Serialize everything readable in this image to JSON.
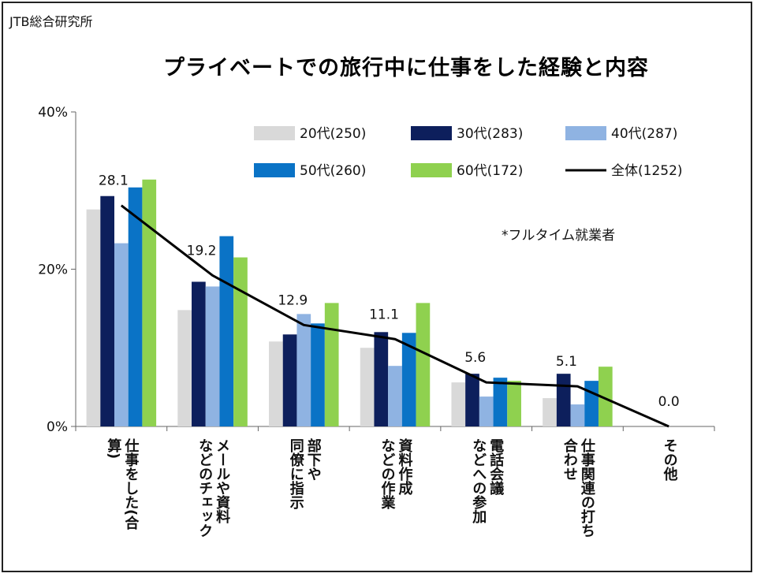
{
  "source": "JTB総合研究所",
  "note": "*フルタイム就業者",
  "chart_data": {
    "type": "bar",
    "title": "プライベートでの旅行中に仕事をした経験と内容",
    "xlabel": "",
    "ylabel": "",
    "ylim": [
      0,
      40
    ],
    "y_ticks": [
      "0%",
      "20%",
      "40%"
    ],
    "y_tick_values": [
      0,
      20,
      40
    ],
    "grid": false,
    "legend_position": "top-right",
    "categories": [
      [
        "仕事をした(合",
        "算)"
      ],
      [
        "メールや資料",
        "などのチェック"
      ],
      [
        "部下や",
        "同僚に指示"
      ],
      [
        "資料作成",
        "などの作業"
      ],
      [
        "電話会議",
        "などへの参加"
      ],
      [
        "仕事関連の打ち",
        "合わせ"
      ],
      [
        "その他"
      ]
    ],
    "series": [
      {
        "name": "20代(250)",
        "color": "#d9d9d9",
        "values": [
          27.6,
          14.8,
          10.8,
          10.0,
          5.6,
          3.6,
          0.0
        ]
      },
      {
        "name": "30代(283)",
        "color": "#0d1f5c",
        "values": [
          29.3,
          18.4,
          11.7,
          12.0,
          6.7,
          6.7,
          0.0
        ]
      },
      {
        "name": "40代(287)",
        "color": "#8fb3e2",
        "values": [
          23.3,
          17.8,
          14.3,
          7.7,
          3.8,
          2.8,
          0.0
        ]
      },
      {
        "name": "50代(260)",
        "color": "#0a73c6",
        "values": [
          30.4,
          24.2,
          13.1,
          11.9,
          6.2,
          5.8,
          0.0
        ]
      },
      {
        "name": "60代(172)",
        "color": "#8fd14f",
        "values": [
          31.4,
          21.5,
          15.7,
          15.7,
          5.8,
          7.6,
          0.0
        ]
      }
    ],
    "line_series": {
      "name": "全体(1252)",
      "color": "#000000",
      "values": [
        28.1,
        19.2,
        12.9,
        11.1,
        5.6,
        5.1,
        0.0
      ],
      "labels": [
        "28.1",
        "19.2",
        "12.9",
        "11.1",
        "5.6",
        "5.1",
        "0.0"
      ]
    }
  }
}
